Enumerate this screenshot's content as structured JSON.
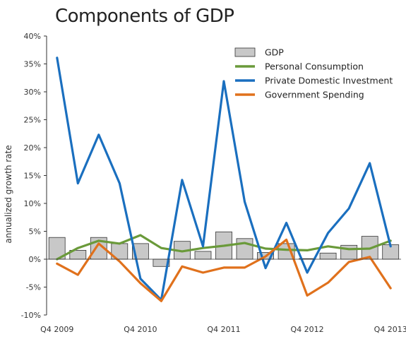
{
  "chart_data": {
    "type": "bar+line",
    "title": "Components of GDP",
    "ylabel": "annualized growth rate",
    "ylim": [
      -10,
      40
    ],
    "yticks": [
      -10,
      -5,
      0,
      5,
      10,
      15,
      20,
      25,
      30,
      35,
      40
    ],
    "ytick_labels": [
      "-10%",
      "-5%",
      "0%",
      "5%",
      "10%",
      "15%",
      "20%",
      "25%",
      "30%",
      "35%",
      "40%"
    ],
    "x": [
      "Q4 2009",
      "Q1 2010",
      "Q2 2010",
      "Q3 2010",
      "Q4 2010",
      "Q1 2011",
      "Q2 2011",
      "Q3 2011",
      "Q4 2011",
      "Q1 2012",
      "Q2 2012",
      "Q3 2012",
      "Q4 2012",
      "Q1 2013",
      "Q2 2013",
      "Q3 2013",
      "Q4 2013"
    ],
    "xtick_labels": [
      "Q4 2009",
      "Q4 2010",
      "Q4 2011",
      "Q4 2012",
      "Q4 2013"
    ],
    "legend_position": "top-right",
    "grid": false,
    "series": [
      {
        "name": "GDP",
        "kind": "bar",
        "color": "#c8c8c8",
        "values": [
          3.9,
          1.6,
          3.9,
          2.8,
          2.8,
          -1.3,
          3.2,
          1.4,
          4.9,
          3.7,
          1.2,
          2.8,
          0.1,
          1.1,
          2.5,
          4.1,
          2.6
        ]
      },
      {
        "name": "Personal Consumption",
        "kind": "line",
        "color": "#6a9a3a",
        "values": [
          0.0,
          2.0,
          3.3,
          2.8,
          4.3,
          2.0,
          1.4,
          2.0,
          2.4,
          2.9,
          1.9,
          1.7,
          1.6,
          2.3,
          1.8,
          1.9,
          3.3
        ]
      },
      {
        "name": "Private Domestic Investment",
        "kind": "line",
        "color": "#1a6fbf",
        "values": [
          36.1,
          13.6,
          22.3,
          13.6,
          -3.5,
          -7.3,
          14.2,
          2.3,
          31.9,
          10.3,
          -1.6,
          6.5,
          -2.4,
          4.7,
          9.1,
          17.2,
          2.3
        ]
      },
      {
        "name": "Government Spending",
        "kind": "line",
        "color": "#e0711c",
        "values": [
          -0.8,
          -2.8,
          2.8,
          -0.4,
          -4.3,
          -7.5,
          -1.3,
          -2.4,
          -1.5,
          -1.5,
          0.5,
          3.5,
          -6.5,
          -4.2,
          -0.5,
          0.4,
          -5.2
        ]
      }
    ]
  }
}
